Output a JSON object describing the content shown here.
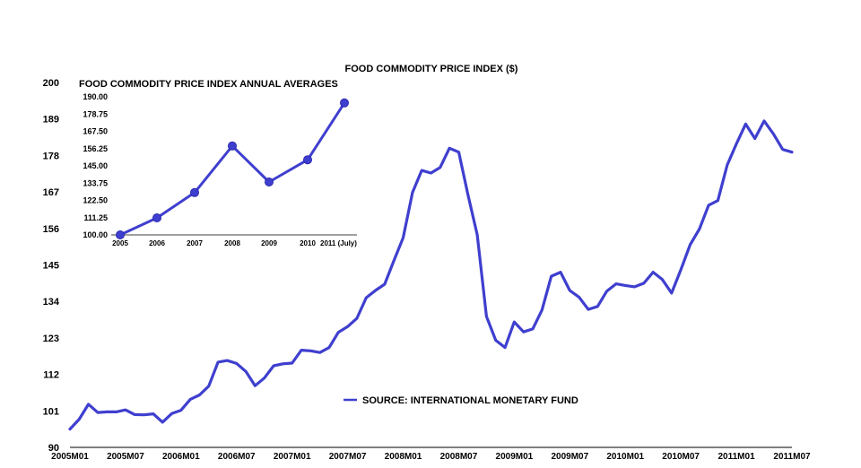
{
  "colors": {
    "series": "#3f3fcf",
    "axis": "#000000",
    "background": "#ffffff"
  },
  "chart_data": [
    {
      "type": "line",
      "title": "FOOD COMMODITY PRICE INDEX ($)",
      "xlabel": "",
      "ylabel": "",
      "ylim": [
        90,
        200
      ],
      "yticks": [
        90,
        101,
        112,
        123,
        134,
        145,
        156,
        167,
        178,
        189,
        200
      ],
      "xticks": [
        "2005M01",
        "2005M07",
        "2006M01",
        "2006M07",
        "2007M01",
        "2007M07",
        "2008M01",
        "2008M07",
        "2009M01",
        "2009M07",
        "2010M01",
        "2010M07",
        "2011M01",
        "2011M07"
      ],
      "grid": false,
      "legend": {
        "position": "bottom-center"
      },
      "series": [
        {
          "name": "SOURCE: INTERNATIONAL MONETARY FUND",
          "x": [
            "2005M01",
            "2005M02",
            "2005M03",
            "2005M04",
            "2005M05",
            "2005M06",
            "2005M07",
            "2005M08",
            "2005M09",
            "2005M10",
            "2005M11",
            "2005M12",
            "2006M01",
            "2006M02",
            "2006M03",
            "2006M04",
            "2006M05",
            "2006M06",
            "2006M07",
            "2006M08",
            "2006M09",
            "2006M10",
            "2006M11",
            "2006M12",
            "2007M01",
            "2007M02",
            "2007M03",
            "2007M04",
            "2007M05",
            "2007M06",
            "2007M07",
            "2007M08",
            "2007M09",
            "2007M10",
            "2007M11",
            "2007M12",
            "2008M01",
            "2008M02",
            "2008M03",
            "2008M04",
            "2008M05",
            "2008M06",
            "2008M07",
            "2008M08",
            "2008M09",
            "2008M10",
            "2008M11",
            "2008M12",
            "2009M01",
            "2009M02",
            "2009M03",
            "2009M04",
            "2009M05",
            "2009M06",
            "2009M07",
            "2009M08",
            "2009M09",
            "2009M10",
            "2009M11",
            "2009M12",
            "2010M01",
            "2010M02",
            "2010M03",
            "2010M04",
            "2010M05",
            "2010M06",
            "2010M07",
            "2010M08",
            "2010M09",
            "2010M10",
            "2010M11",
            "2010M12",
            "2011M01",
            "2011M02",
            "2011M03",
            "2011M04",
            "2011M05",
            "2011M06",
            "2011M07"
          ],
          "values": [
            95.5,
            98.5,
            103,
            100.5,
            100.7,
            100.7,
            101.3,
            99.9,
            99.8,
            100.1,
            97.6,
            100.2,
            101.2,
            104.5,
            105.8,
            108.5,
            115.7,
            116.2,
            115.3,
            112.9,
            108.6,
            110.9,
            114.6,
            115.2,
            115.4,
            119.3,
            119.1,
            118.6,
            120.1,
            124.7,
            126.4,
            128.9,
            135.1,
            137.3,
            139.2,
            146.3,
            153.2,
            166.8,
            173.5,
            172.7,
            174.4,
            180.2,
            179.0,
            166.1,
            154.1,
            129.5,
            122.3,
            120.1,
            127.8,
            124.8,
            125.7,
            131.4,
            141.6,
            142.8,
            137.3,
            135.3,
            131.6,
            132.5,
            137.1,
            139.3,
            138.8,
            138.4,
            139.5,
            142.8,
            140.6,
            136.5,
            143.6,
            151.1,
            155.8,
            163.0,
            164.4,
            175.1,
            181.5,
            187.5,
            183.1,
            188.4,
            184.5,
            179.8,
            179.0
          ]
        }
      ]
    },
    {
      "type": "line",
      "title": "FOOD COMMODITY PRICE INDEX ANNUAL AVERAGES",
      "xlabel": "",
      "ylabel": "",
      "ylim": [
        100,
        190
      ],
      "yticks": [
        "100.00",
        "111.25",
        "122.50",
        "133.75",
        "145.00",
        "156.25",
        "167.50",
        "178.75",
        "190.00"
      ],
      "categories": [
        "2005",
        "2006",
        "2007",
        "2008",
        "2009",
        "2010",
        "2011 (July)"
      ],
      "grid": false,
      "markers": true,
      "series": [
        {
          "name": "",
          "values": [
            100.0,
            111.1,
            127.6,
            158.0,
            134.5,
            149.0,
            186.0
          ]
        }
      ]
    }
  ]
}
